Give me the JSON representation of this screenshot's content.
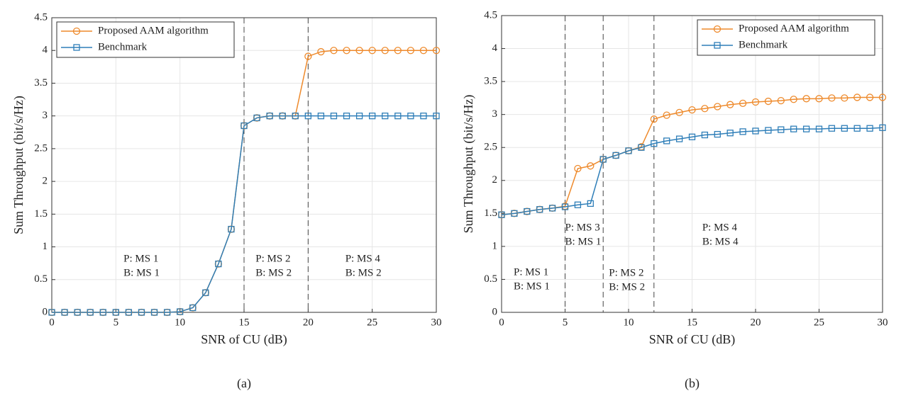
{
  "chart_data": [
    {
      "type": "line",
      "caption": "(a)",
      "xlabel": "SNR of CU (dB)",
      "ylabel": "Sum Throughput (bit/s/Hz)",
      "x": [
        0,
        1,
        2,
        3,
        4,
        5,
        6,
        7,
        8,
        9,
        10,
        11,
        12,
        13,
        14,
        15,
        16,
        17,
        18,
        19,
        20,
        21,
        22,
        23,
        24,
        25,
        26,
        27,
        28,
        29,
        30
      ],
      "series": [
        {
          "name": "Proposed AAM algorithm",
          "color": "#EE8A2C",
          "marker": "circle",
          "values": [
            0,
            0,
            0,
            0,
            0,
            0,
            0,
            0,
            0,
            0,
            0.01,
            0.07,
            0.3,
            0.74,
            1.27,
            2.85,
            2.97,
            3.0,
            3.0,
            3.0,
            3.91,
            3.98,
            4.0,
            4.0,
            4.0,
            4.0,
            4.0,
            4.0,
            4.0,
            4.0,
            4.0
          ]
        },
        {
          "name": "Benchmark",
          "color": "#2E7EB8",
          "marker": "square",
          "values": [
            0,
            0,
            0,
            0,
            0,
            0,
            0,
            0,
            0,
            0,
            0.01,
            0.07,
            0.3,
            0.74,
            1.27,
            2.85,
            2.97,
            3.0,
            3.0,
            3.0,
            3.0,
            3.0,
            3.0,
            3.0,
            3.0,
            3.0,
            3.0,
            3.0,
            3.0,
            3.0,
            3.0
          ]
        }
      ],
      "xlim": [
        0,
        30
      ],
      "xticks": [
        0,
        5,
        10,
        15,
        20,
        25,
        30
      ],
      "ylim": [
        0,
        4.5
      ],
      "yticks": [
        0,
        0.5,
        1,
        1.5,
        2,
        2.5,
        3,
        3.5,
        4,
        4.5
      ],
      "grid": true,
      "legend": "upper left",
      "vlines": [
        15,
        20
      ],
      "annotations": [
        [
          "P: MS 1",
          "B: MS 1"
        ],
        [
          "P: MS 2",
          "B: MS 2"
        ],
        [
          "P: MS 4",
          "B: MS 2"
        ]
      ]
    },
    {
      "type": "line",
      "caption": "(b)",
      "xlabel": "SNR of CU (dB)",
      "ylabel": "Sum Throughput (bit/s/Hz)",
      "x": [
        0,
        1,
        2,
        3,
        4,
        5,
        6,
        7,
        8,
        9,
        10,
        11,
        12,
        13,
        14,
        15,
        16,
        17,
        18,
        19,
        20,
        21,
        22,
        23,
        24,
        25,
        26,
        27,
        28,
        29,
        30
      ],
      "series": [
        {
          "name": "Proposed AAM algorithm",
          "color": "#EE8A2C",
          "marker": "circle",
          "values": [
            1.48,
            1.5,
            1.53,
            1.56,
            1.58,
            1.61,
            2.18,
            2.22,
            2.32,
            2.38,
            2.45,
            2.51,
            2.93,
            2.99,
            3.03,
            3.07,
            3.09,
            3.12,
            3.15,
            3.17,
            3.19,
            3.2,
            3.21,
            3.23,
            3.24,
            3.24,
            3.25,
            3.25,
            3.26,
            3.26,
            3.26
          ]
        },
        {
          "name": "Benchmark",
          "color": "#2E7EB8",
          "marker": "square",
          "values": [
            1.48,
            1.5,
            1.53,
            1.56,
            1.58,
            1.6,
            1.63,
            1.65,
            2.32,
            2.38,
            2.45,
            2.5,
            2.56,
            2.6,
            2.63,
            2.66,
            2.69,
            2.7,
            2.72,
            2.74,
            2.75,
            2.76,
            2.77,
            2.78,
            2.78,
            2.78,
            2.79,
            2.79,
            2.79,
            2.79,
            2.8
          ]
        }
      ],
      "xlim": [
        0,
        30
      ],
      "xticks": [
        0,
        5,
        10,
        15,
        20,
        25,
        30
      ],
      "ylim": [
        0,
        4.5
      ],
      "yticks": [
        0,
        0.5,
        1,
        1.5,
        2,
        2.5,
        3,
        3.5,
        4,
        4.5
      ],
      "grid": true,
      "legend": "upper right",
      "vlines": [
        5,
        8,
        12
      ],
      "annotations": [
        [
          "P: MS 1",
          "B: MS 1"
        ],
        [
          "P: MS 3",
          "B: MS 1"
        ],
        [
          "P: MS 2",
          "B: MS 2"
        ],
        [
          "P: MS 4",
          "B: MS 4"
        ]
      ]
    }
  ]
}
